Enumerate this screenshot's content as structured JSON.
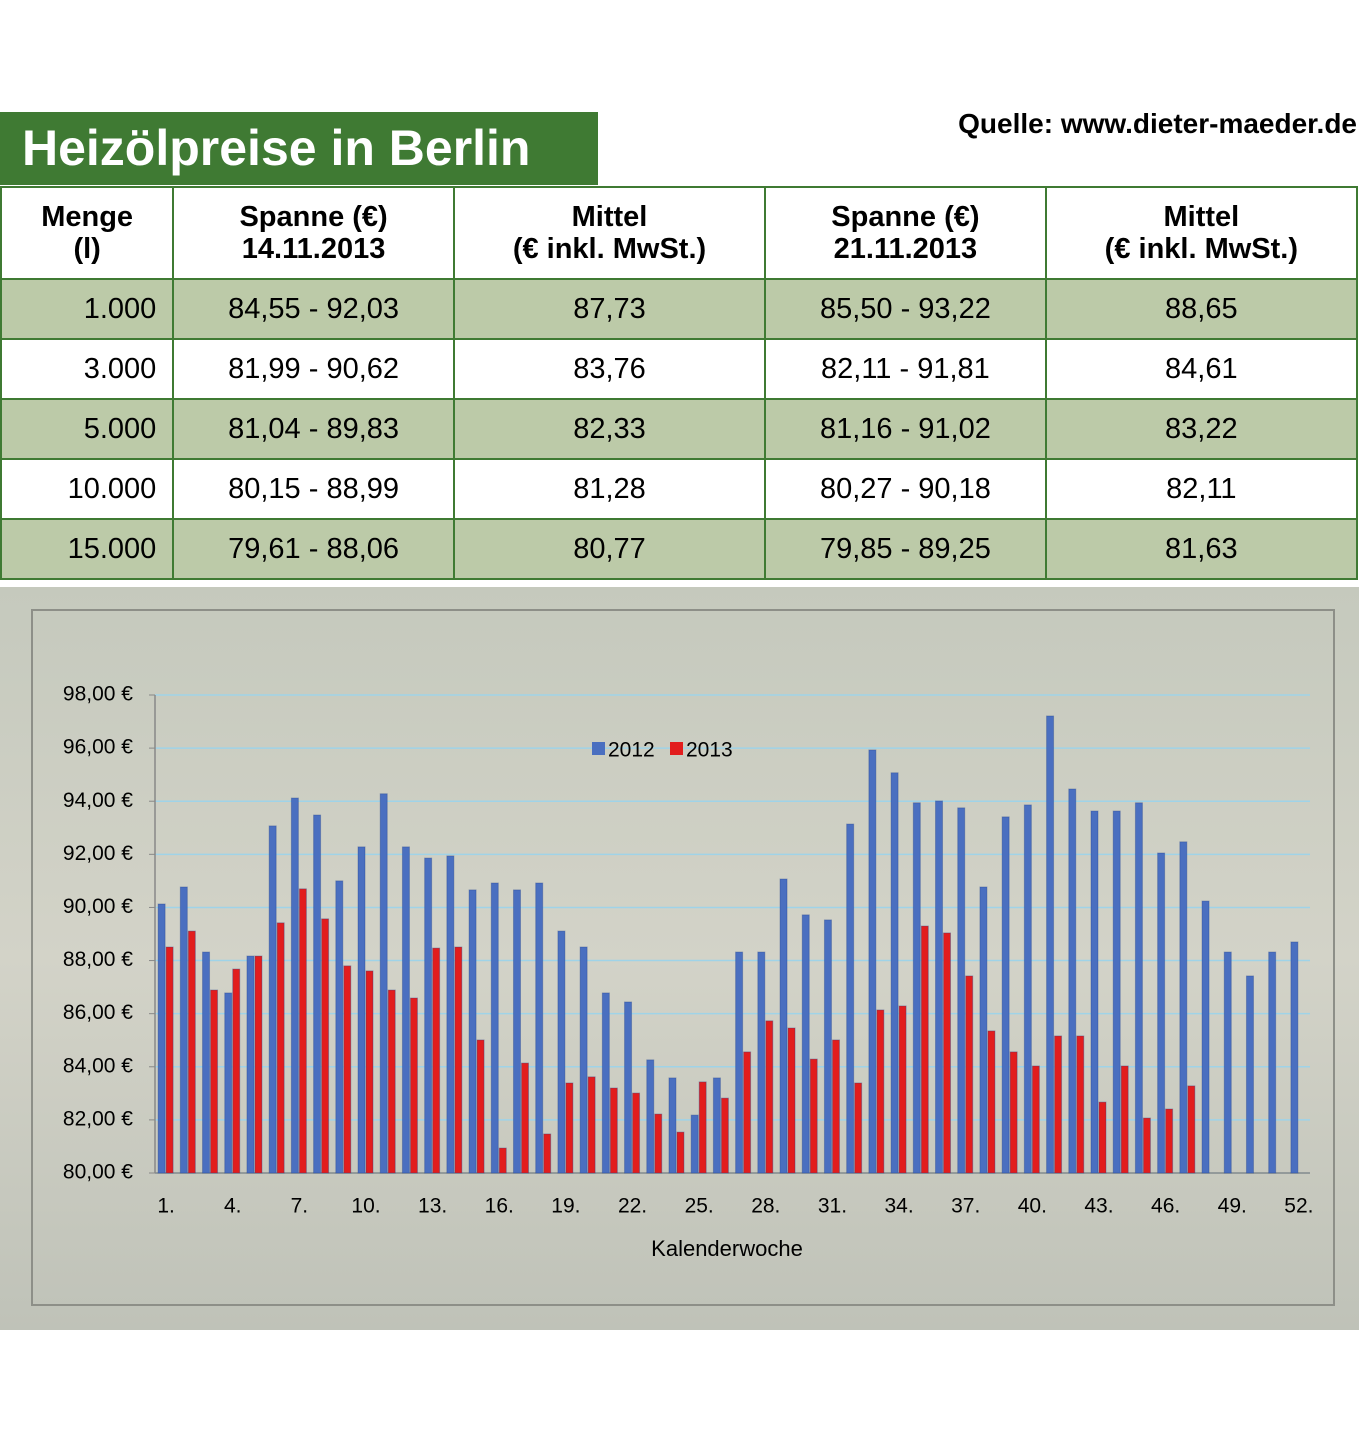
{
  "header": {
    "title": "Heizölpreise in Berlin",
    "source": "Quelle: www.dieter-maeder.de"
  },
  "table": {
    "headers": [
      [
        "Menge",
        "(l)"
      ],
      [
        "Spanne (€)",
        "14.11.2013"
      ],
      [
        "Mittel",
        "(€ inkl. MwSt.)"
      ],
      [
        "Spanne (€)",
        "21.11.2013"
      ],
      [
        "Mittel",
        "(€ inkl. MwSt.)"
      ]
    ],
    "rows": [
      [
        "1.000",
        "84,55 - 92,03",
        "87,73",
        "85,50 - 93,22",
        "88,65"
      ],
      [
        "3.000",
        "81,99 - 90,62",
        "83,76",
        "82,11 - 91,81",
        "84,61"
      ],
      [
        "5.000",
        "81,04 - 89,83",
        "82,33",
        "81,16 - 91,02",
        "83,22"
      ],
      [
        "10.000",
        "80,15 - 88,99",
        "81,28",
        "80,27 - 90,18",
        "82,11"
      ],
      [
        "15.000",
        "79,61 - 88,06",
        "80,77",
        "79,85 - 89,25",
        "81,63"
      ]
    ]
  },
  "chart_data": {
    "type": "bar",
    "x_label": "Kalenderwoche",
    "categories": [
      "1.",
      null,
      null,
      "4.",
      null,
      null,
      "7.",
      null,
      null,
      "10.",
      null,
      null,
      "13.",
      null,
      null,
      "16.",
      null,
      null,
      "19.",
      null,
      null,
      "22.",
      null,
      null,
      "25.",
      null,
      null,
      "28.",
      null,
      null,
      "31.",
      null,
      null,
      "34.",
      null,
      null,
      "37.",
      null,
      null,
      "40.",
      null,
      null,
      "43.",
      null,
      null,
      "46.",
      null,
      null,
      "49.",
      null,
      null,
      "52."
    ],
    "series": [
      {
        "name": "2012",
        "color": "#4a6fc0",
        "values": [
          90.13,
          90.77,
          88.32,
          86.78,
          88.17,
          93.07,
          94.12,
          93.48,
          91.0,
          92.28,
          94.28,
          92.28,
          91.86,
          91.94,
          90.66,
          90.92,
          90.66,
          90.92,
          89.11,
          88.51,
          86.78,
          86.44,
          84.26,
          83.58,
          82.18,
          83.58,
          88.32,
          88.32,
          91.07,
          89.72,
          89.53,
          93.14,
          95.93,
          95.07,
          93.94,
          94.01,
          93.75,
          90.77,
          93.41,
          93.86,
          97.21,
          94.46,
          93.63,
          93.63,
          93.94,
          92.05,
          92.47,
          90.24,
          88.32,
          87.42,
          88.32,
          88.7
        ]
      },
      {
        "name": "2013",
        "color": "#e21d1d",
        "values": [
          88.51,
          89.11,
          86.89,
          87.68,
          88.17,
          89.42,
          90.7,
          89.57,
          87.8,
          87.61,
          86.89,
          86.59,
          88.47,
          88.51,
          85.01,
          80.94,
          84.14,
          81.47,
          83.39,
          83.62,
          83.2,
          83.01,
          82.22,
          81.54,
          83.43,
          82.82,
          84.56,
          85.73,
          85.46,
          84.29,
          85.01,
          83.39,
          86.14,
          86.29,
          89.3,
          89.04,
          87.42,
          85.35,
          84.56,
          84.03,
          85.16,
          85.16,
          82.67,
          84.03,
          82.07,
          82.41,
          83.28,
          null,
          null,
          null,
          null,
          null
        ]
      }
    ],
    "ylim": [
      80,
      98
    ],
    "yticks": [
      {
        "value": 80,
        "label": "80,00 €"
      },
      {
        "value": 82,
        "label": "82,00 €"
      },
      {
        "value": 84,
        "label": "84,00 €"
      },
      {
        "value": 86,
        "label": "86,00 €"
      },
      {
        "value": 88,
        "label": "88,00 €"
      },
      {
        "value": 90,
        "label": "90,00 €"
      },
      {
        "value": 92,
        "label": "92,00 €"
      },
      {
        "value": 94,
        "label": "94,00 €"
      },
      {
        "value": 96,
        "label": "96,00 €"
      },
      {
        "value": 98,
        "label": "98,00 €"
      }
    ],
    "grid": true,
    "legend": "top"
  }
}
